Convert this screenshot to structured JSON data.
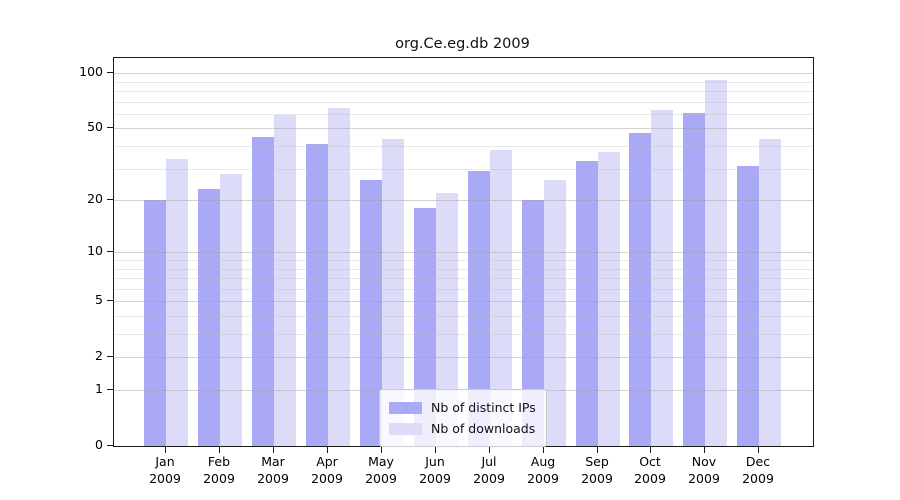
{
  "chart_data": {
    "type": "bar",
    "title": "org.Ce.eg.db 2009",
    "xlabel": "",
    "ylabel": "",
    "yscale": "log1p",
    "ylim": [
      0,
      115
    ],
    "months": [
      "Jan",
      "Feb",
      "Mar",
      "Apr",
      "May",
      "Jun",
      "Jul",
      "Aug",
      "Sep",
      "Oct",
      "Nov",
      "Dec"
    ],
    "year": "2009",
    "series": [
      {
        "name": "Nb of distinct IPs",
        "color": "#a9a9f6",
        "values": [
          20,
          23,
          45,
          41,
          26,
          18,
          29,
          20,
          33,
          47,
          61,
          31
        ]
      },
      {
        "name": "Nb of downloads",
        "color": "#dcdcf8",
        "values": [
          34,
          28,
          59,
          65,
          44,
          22,
          38,
          26,
          37,
          63,
          92,
          44
        ]
      }
    ],
    "ytick_values": [
      100,
      50,
      20,
      10,
      5,
      2,
      1,
      0
    ],
    "grid_major_values": [
      1,
      2,
      5,
      10,
      20,
      50,
      100
    ],
    "grid_minor_values": [
      3,
      4,
      6,
      7,
      8,
      9,
      30,
      40,
      60,
      70,
      80,
      90
    ],
    "legend": {
      "position": "lower-center",
      "entries": [
        "Nb of distinct IPs",
        "Nb of downloads"
      ]
    },
    "colors": {
      "grid_major": "rgba(160,160,160,0.45)",
      "grid_minor": "rgba(190,190,190,0.35)",
      "spine": "#1a1a1a",
      "text": "#000000",
      "background": "#ffffff"
    }
  }
}
